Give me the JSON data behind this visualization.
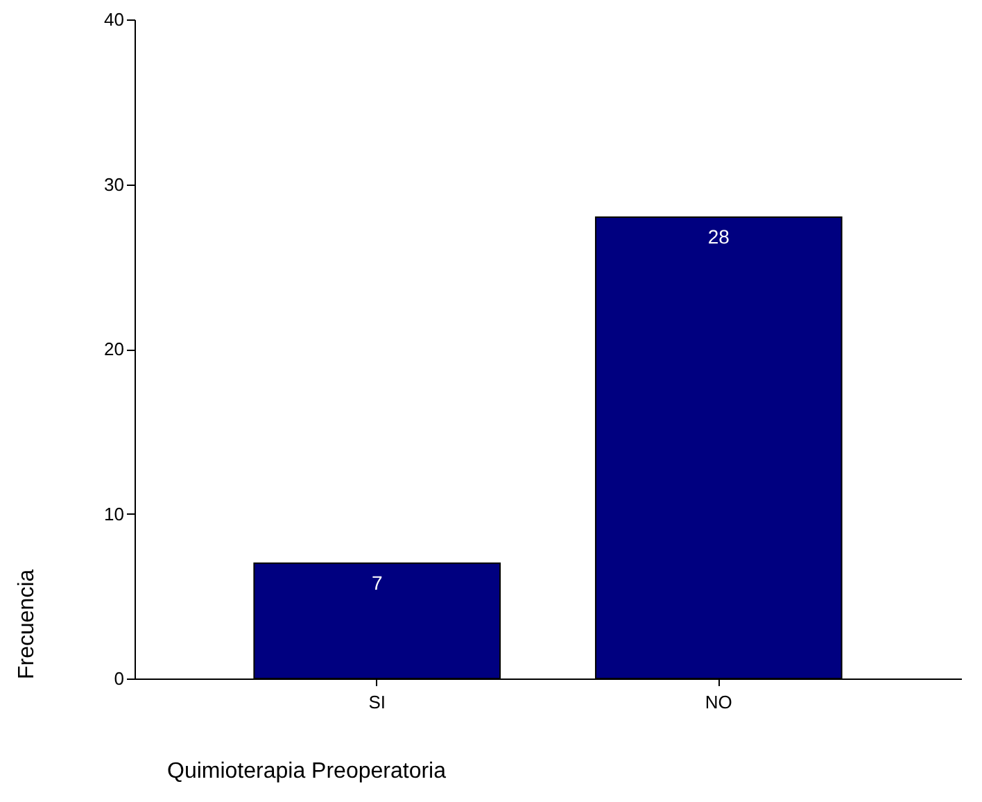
{
  "chart_data": {
    "type": "bar",
    "xlabel": "Quimioterapia Preoperatoria",
    "ylabel": "Frecuencia",
    "categories": [
      "SI",
      "NO"
    ],
    "values": [
      7,
      28
    ],
    "color": "#000080",
    "ylim": [
      0,
      40
    ],
    "yticks": [
      0,
      10,
      20,
      30,
      40
    ],
    "grid": false,
    "data_labels": true
  }
}
